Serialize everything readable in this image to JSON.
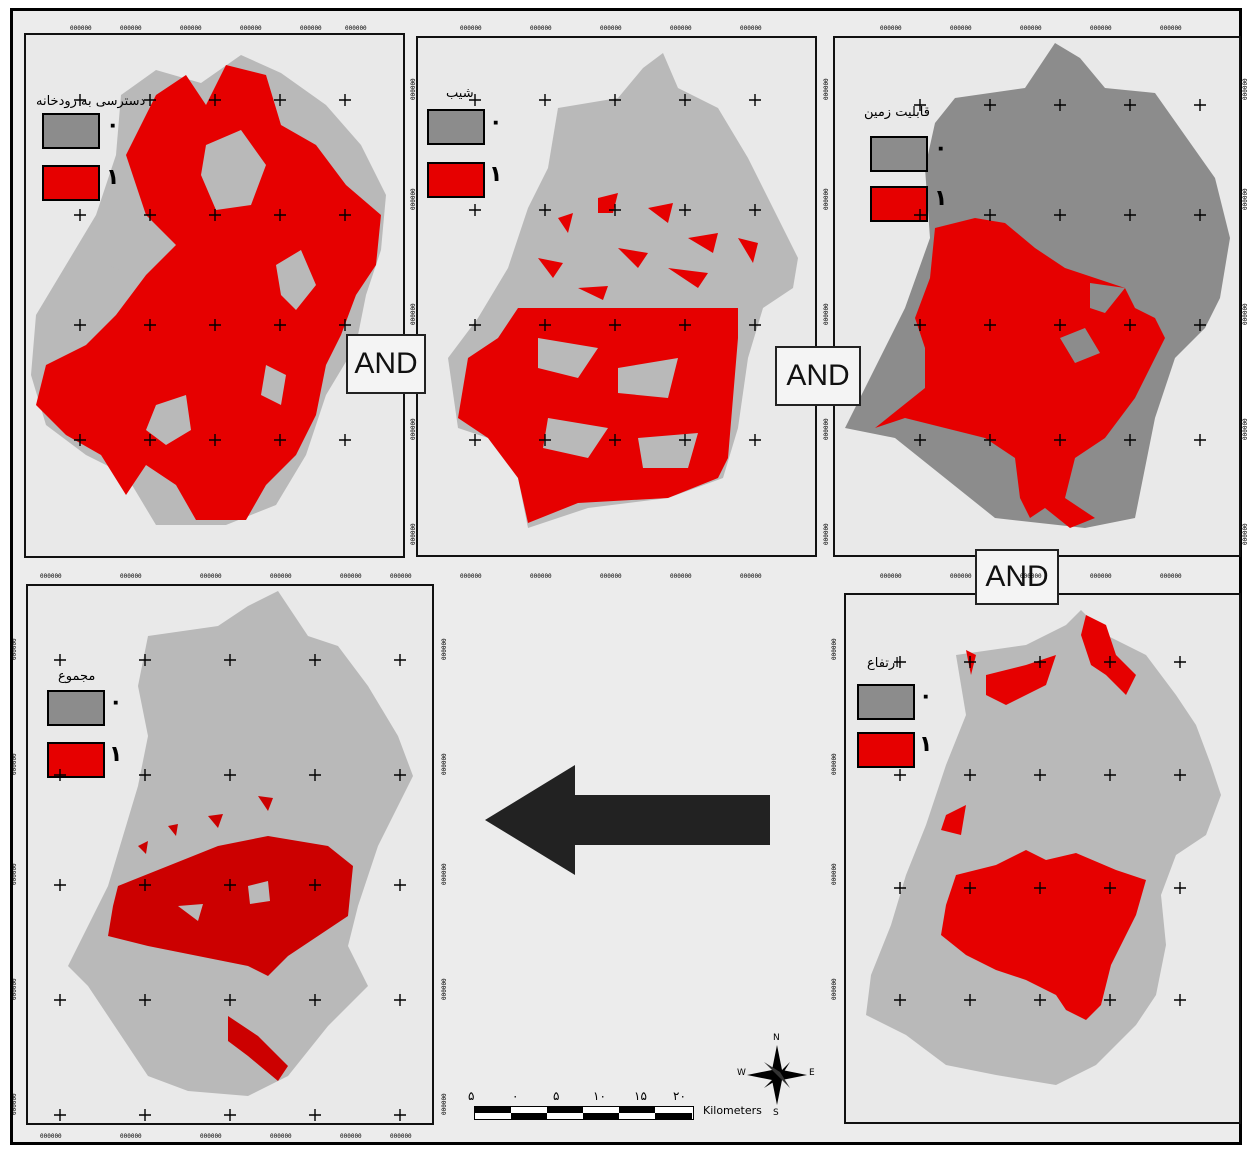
{
  "maps": {
    "river_distance": {
      "title": "دسترسی به رودخانه",
      "class0": "۰",
      "class1": "۱"
    },
    "slope": {
      "title": "شیب",
      "class0": "۰",
      "class1": "۱"
    },
    "land_capability": {
      "title": "قابلیت زمین",
      "class0": "۰",
      "class1": "۱"
    },
    "total": {
      "title": "مجموع",
      "class0": "۰",
      "class1": "۱"
    },
    "elevation": {
      "title": "ارتفاع",
      "class0": "۰",
      "class1": "۱"
    }
  },
  "operators": {
    "and1": "AND",
    "and2": "AND",
    "and3": "AND"
  },
  "scale_bar": {
    "labels": [
      "۵",
      "۰",
      "۵",
      "۱۰",
      "۱۵",
      "۲۰"
    ],
    "unit": "Kilometers"
  },
  "north_arrow": {
    "n": "N",
    "s": "S",
    "e": "E",
    "w": "W"
  },
  "tick_label": "000000",
  "colors": {
    "gray": "#8c8c8c",
    "light_gray": "#b9b9b9",
    "red": "#e60000",
    "dark_red": "#cc0000",
    "arrow": "#222222"
  }
}
